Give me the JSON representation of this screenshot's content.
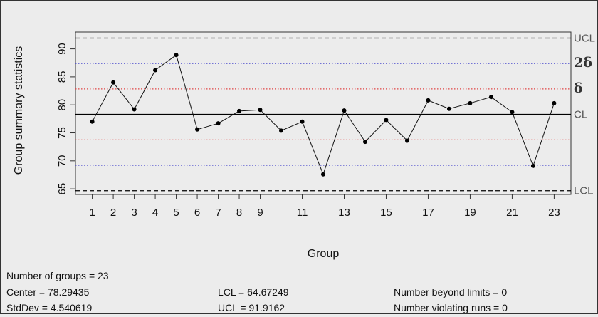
{
  "chart_data": {
    "type": "line",
    "xlabel": "Group",
    "ylabel": "Group summary statistics",
    "xlim": [
      0.2,
      23.8
    ],
    "ylim": [
      64,
      93
    ],
    "x_ticks": [
      1,
      2,
      3,
      4,
      5,
      6,
      7,
      8,
      9,
      11,
      13,
      15,
      17,
      19,
      21,
      23
    ],
    "y_ticks": [
      65,
      70,
      75,
      80,
      85,
      90
    ],
    "x": [
      1,
      2,
      3,
      4,
      5,
      6,
      7,
      8,
      9,
      10,
      11,
      12,
      13,
      14,
      15,
      16,
      17,
      18,
      19,
      20,
      21,
      22,
      23
    ],
    "values": [
      77.0,
      84.0,
      79.2,
      86.2,
      88.9,
      75.6,
      76.7,
      78.9,
      79.1,
      75.4,
      77.0,
      67.6,
      79.0,
      73.4,
      77.3,
      73.6,
      80.8,
      79.3,
      80.3,
      81.4,
      78.7,
      69.1,
      80.3
    ],
    "limits": {
      "ucl": {
        "value": 91.9162,
        "label": "UCL",
        "style": "dashed",
        "color": "#000000"
      },
      "upper_2sigma": {
        "value": 87.38,
        "label": "2δ",
        "style": "dotted",
        "color": "#4a4acb"
      },
      "upper_1sigma": {
        "value": 82.84,
        "label": "δ",
        "style": "dotted",
        "color": "#e04545"
      },
      "cl": {
        "value": 78.29435,
        "label": "CL",
        "style": "solid",
        "color": "#000000"
      },
      "lower_1sigma": {
        "value": 73.75,
        "style": "dotted",
        "color": "#e04545"
      },
      "lower_2sigma": {
        "value": 69.21,
        "style": "dotted",
        "color": "#4a4acb"
      },
      "lcl": {
        "value": 64.67249,
        "label": "LCL",
        "style": "dashed",
        "color": "#000000"
      }
    }
  },
  "stats": {
    "groups": "Number of groups = 23",
    "center": "Center = 78.29435",
    "stddev": "StdDev = 4.540619",
    "lcl": "LCL = 64.67249",
    "ucl": "UCL = 91.9162",
    "beyond": "Number beyond limits = 0",
    "violating": "Number violating runs = 0"
  }
}
